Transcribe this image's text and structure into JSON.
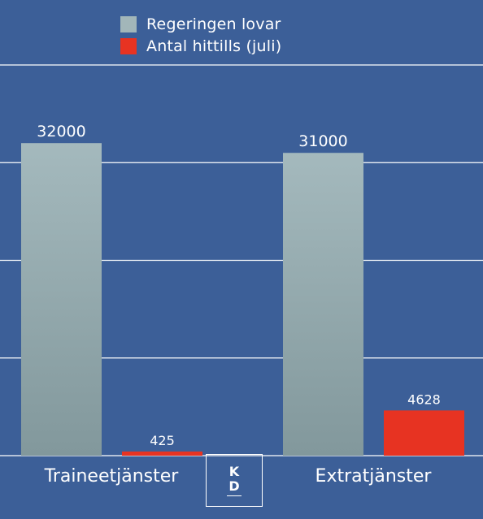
{
  "colors": {
    "background": "#3c5f98",
    "series_promised": "#a2b6b9",
    "series_actual": "#e73322",
    "gridline": "#ffffff",
    "text": "#ffffff"
  },
  "logo": {
    "top": "K",
    "bottom": "D"
  },
  "chart_data": {
    "type": "bar",
    "categories": [
      "Traineetjänster",
      "Extratjänster"
    ],
    "series": [
      {
        "name": "Regeringen lovar",
        "values": [
          32000,
          31000
        ],
        "color": "#a2b6b9"
      },
      {
        "name": "Antal hittills (juli)",
        "values": [
          425,
          4628
        ],
        "color": "#e73322"
      }
    ],
    "title": "",
    "xlabel": "",
    "ylabel": "",
    "ylim": [
      0,
      40000
    ],
    "ytick_step": 10000,
    "grid": true,
    "legend": "top-center"
  }
}
